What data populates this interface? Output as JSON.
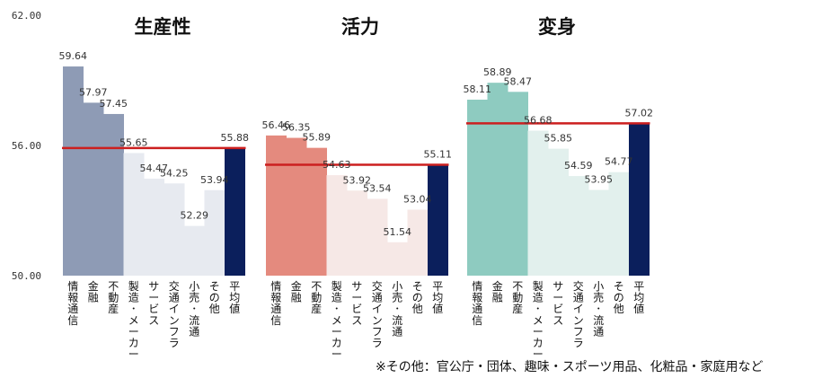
{
  "chart_data": {
    "type": "bar",
    "yticks": [
      "62.00",
      "56.00",
      "50.00"
    ],
    "ylim": [
      50,
      62
    ],
    "categories": [
      "情報通信",
      "金融",
      "不動産",
      "製造・メーカー",
      "サービス",
      "交通インフラ",
      "小売・流通",
      "その他",
      "平均値"
    ],
    "panels": [
      {
        "title": "生産性",
        "values": [
          59.64,
          57.97,
          57.45,
          55.65,
          54.47,
          54.25,
          52.29,
          53.94,
          55.88
        ],
        "labels": [
          "59.64",
          "57.97",
          "57.45",
          "55.65",
          "54.47",
          "54.25",
          "52.29",
          "53.94",
          "55.88"
        ],
        "colors": {
          "strong": "#8e9bb5",
          "light": "#e7eaf0",
          "avg": "#0b1f5c",
          "line": "#cc1f1f"
        }
      },
      {
        "title": "活力",
        "values": [
          56.46,
          56.35,
          55.89,
          54.63,
          53.92,
          53.54,
          51.54,
          53.04,
          55.11
        ],
        "labels": [
          "56.46",
          "56.35",
          "55.89",
          "54.63",
          "53.92",
          "53.54",
          "51.54",
          "53.04",
          "55.11"
        ],
        "colors": {
          "strong": "#e48a7e",
          "light": "#f6e8e6",
          "avg": "#0b1f5c",
          "line": "#cc1f1f"
        }
      },
      {
        "title": "変身",
        "values": [
          58.11,
          58.89,
          58.47,
          56.68,
          55.85,
          54.59,
          53.95,
          54.77,
          57.02
        ],
        "labels": [
          "58.11",
          "58.89",
          "58.47",
          "56.68",
          "55.85",
          "54.59",
          "53.95",
          "54.77",
          "57.02"
        ],
        "colors": {
          "strong": "#8ecbc0",
          "light": "#e2f0ed",
          "avg": "#0b1f5c",
          "line": "#cc1f1f"
        }
      }
    ]
  },
  "footnote": "※その他：官公庁・団体、趣味・スポーツ用品、化粧品・家庭用など"
}
